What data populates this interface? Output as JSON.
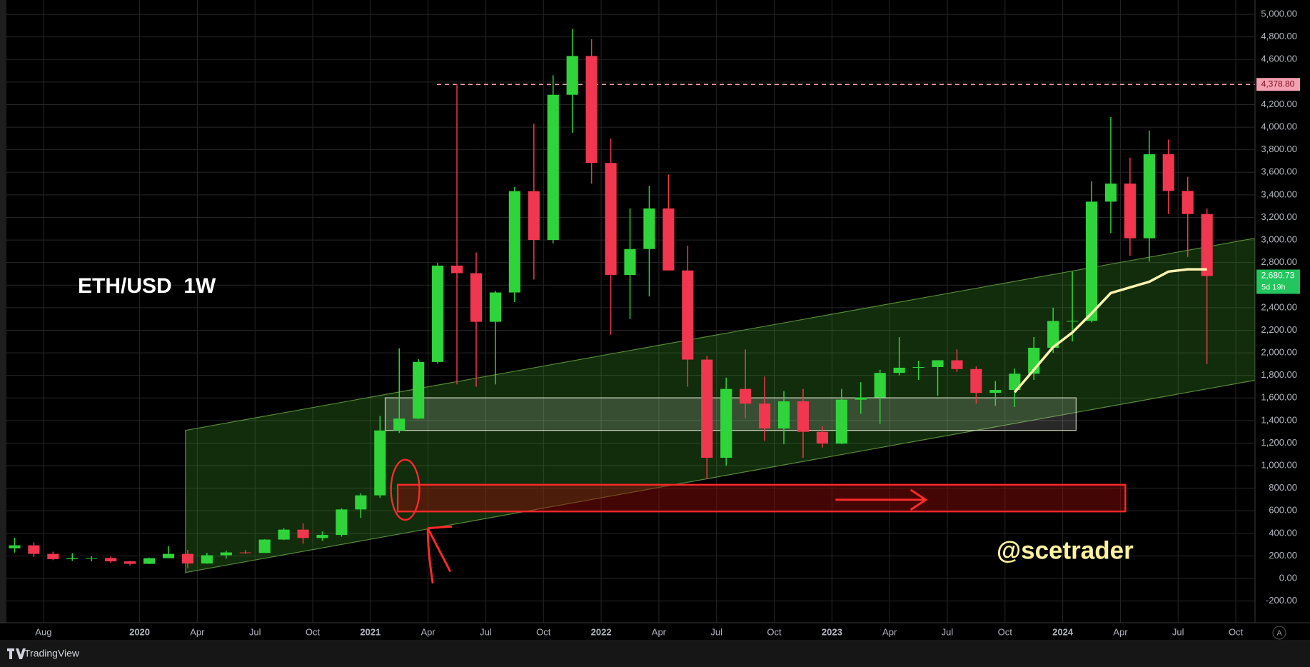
{
  "chart_data": {
    "type": "candlestick",
    "title": "ETH/USD  1W",
    "annotation": "@scetrader",
    "x": [
      "2019-06",
      "2019-07",
      "2019-08",
      "2019-09",
      "2019-10",
      "2019-11",
      "2019-12",
      "2020-01",
      "2020-02",
      "2020-03",
      "2020-04",
      "2020-05",
      "2020-06",
      "2020-07",
      "2020-08",
      "2020-09",
      "2020-10",
      "2020-11",
      "2020-12",
      "2021-01",
      "2021-02",
      "2021-03",
      "2021-04",
      "2021-05",
      "2021-06",
      "2021-07",
      "2021-08",
      "2021-09",
      "2021-10",
      "2021-11",
      "2021-12",
      "2022-01",
      "2022-02",
      "2022-03",
      "2022-04",
      "2022-05",
      "2022-06",
      "2022-07",
      "2022-08",
      "2022-09",
      "2022-10",
      "2022-11",
      "2022-12",
      "2023-01",
      "2023-02",
      "2023-03",
      "2023-04",
      "2023-05",
      "2023-06",
      "2023-07",
      "2023-08",
      "2023-09",
      "2023-10",
      "2023-11",
      "2023-12",
      "2024-01",
      "2024-02",
      "2024-03",
      "2024-04",
      "2024-05",
      "2024-06",
      "2024-07",
      "2024-08"
    ],
    "open": [
      268,
      294,
      218,
      172,
      180,
      182,
      152,
      130,
      180,
      218,
      133,
      206,
      231,
      226,
      345,
      433,
      359,
      386,
      612,
      737,
      1312,
      1417,
      1919,
      2773,
      2706,
      2275,
      2535,
      3433,
      3000,
      4287,
      4631,
      3683,
      2690,
      2920,
      3280,
      2730,
      1940,
      1070,
      1680,
      1550,
      1330,
      1570,
      1300,
      1195,
      1585,
      1605,
      1822,
      1868,
      1874,
      1934,
      1856,
      1645,
      1671,
      1815,
      2045,
      2282,
      2283,
      3340,
      3500,
      3015,
      3760,
      3435,
      3230
    ],
    "high": [
      361,
      320,
      237,
      223,
      197,
      195,
      155,
      185,
      288,
      254,
      228,
      246,
      253,
      347,
      445,
      489,
      417,
      622,
      755,
      1440,
      2040,
      1943,
      2797,
      4380,
      2890,
      2550,
      3470,
      4030,
      4460,
      4870,
      4780,
      3900,
      3280,
      3480,
      3580,
      2950,
      1970,
      1780,
      2030,
      1790,
      1660,
      1680,
      1350,
      1680,
      1740,
      1850,
      2140,
      1930,
      1930,
      2030,
      1880,
      1750,
      1860,
      2140,
      2400,
      2720,
      3520,
      4090,
      3730,
      3970,
      3890,
      3560,
      3280
    ],
    "low": [
      230,
      190,
      163,
      156,
      152,
      138,
      116,
      127,
      180,
      90,
      130,
      176,
      218,
      226,
      341,
      308,
      334,
      371,
      537,
      714,
      1290,
      1412,
      1904,
      1720,
      1700,
      1720,
      2450,
      2650,
      2970,
      3950,
      3500,
      2160,
      2300,
      2500,
      2780,
      1700,
      880,
      1000,
      1420,
      1220,
      1190,
      1070,
      1160,
      1190,
      1460,
      1370,
      1800,
      1760,
      1620,
      1830,
      1550,
      1530,
      1520,
      1760,
      2000,
      2100,
      2270,
      3060,
      2860,
      2810,
      3230,
      2850,
      1900
    ],
    "close": [
      294,
      218,
      172,
      180,
      182,
      152,
      130,
      180,
      218,
      133,
      206,
      231,
      226,
      345,
      433,
      359,
      386,
      612,
      737,
      1312,
      1417,
      1919,
      2773,
      2706,
      2275,
      2535,
      3433,
      3000,
      4287,
      4631,
      3683,
      2690,
      2920,
      3280,
      2730,
      1940,
      1070,
      1680,
      1550,
      1330,
      1570,
      1300,
      1195,
      1585,
      1605,
      1822,
      1868,
      1874,
      1934,
      1856,
      1645,
      1671,
      1815,
      2045,
      2282,
      2283,
      3340,
      3500,
      3015,
      3760,
      3435,
      3230,
      2680.73
    ],
    "line_values": [
      null,
      null,
      null,
      null,
      null,
      null,
      null,
      null,
      null,
      null,
      null,
      null,
      null,
      null,
      null,
      null,
      null,
      null,
      null,
      null,
      null,
      null,
      null,
      null,
      null,
      null,
      null,
      null,
      null,
      null,
      null,
      null,
      null,
      null,
      null,
      null,
      null,
      null,
      null,
      null,
      null,
      null,
      null,
      null,
      null,
      null,
      null,
      null,
      null,
      null,
      null,
      null,
      1650,
      1850,
      2050,
      2180,
      2350,
      2530,
      2580,
      2630,
      2720,
      2740,
      2740
    ],
    "line_color": "#fff3b0",
    "up_color": "#2fd43a",
    "down_color": "#f0374f",
    "xlim": [
      "2019-06",
      "2024-11"
    ],
    "xticks": [
      {
        "value": "2019-08",
        "label": "Aug"
      },
      {
        "value": "2020-01",
        "label": "2020"
      },
      {
        "value": "2020-04",
        "label": "Apr"
      },
      {
        "value": "2020-07",
        "label": "Jul"
      },
      {
        "value": "2020-10",
        "label": "Oct"
      },
      {
        "value": "2021-01",
        "label": "2021"
      },
      {
        "value": "2021-04",
        "label": "Apr"
      },
      {
        "value": "2021-07",
        "label": "Jul"
      },
      {
        "value": "2021-10",
        "label": "Oct"
      },
      {
        "value": "2022-01",
        "label": "2022"
      },
      {
        "value": "2022-04",
        "label": "Apr"
      },
      {
        "value": "2022-07",
        "label": "Jul"
      },
      {
        "value": "2022-10",
        "label": "Oct"
      },
      {
        "value": "2023-01",
        "label": "2023"
      },
      {
        "value": "2023-04",
        "label": "Apr"
      },
      {
        "value": "2023-07",
        "label": "Jul"
      },
      {
        "value": "2023-10",
        "label": "Oct"
      },
      {
        "value": "2024-01",
        "label": "2024"
      },
      {
        "value": "2024-04",
        "label": "Apr"
      },
      {
        "value": "2024-07",
        "label": "Jul"
      },
      {
        "value": "2024-10",
        "label": "Oct"
      }
    ],
    "ylim": [
      -392,
      5127
    ],
    "yticks": [
      {
        "value": -200,
        "label": "-200.00"
      },
      {
        "value": 0,
        "label": "0.00"
      },
      {
        "value": 200,
        "label": "200.00"
      },
      {
        "value": 400,
        "label": "400.00"
      },
      {
        "value": 600,
        "label": "600.00"
      },
      {
        "value": 800,
        "label": "800.00"
      },
      {
        "value": 1000,
        "label": "1,000.00"
      },
      {
        "value": 1200,
        "label": "1,200.00"
      },
      {
        "value": 1400,
        "label": "1,400.00"
      },
      {
        "value": 1600,
        "label": "1,600.00"
      },
      {
        "value": 1800,
        "label": "1,800.00"
      },
      {
        "value": 2000,
        "label": "2,000.00"
      },
      {
        "value": 2200,
        "label": "2,200.00"
      },
      {
        "value": 2400,
        "label": "2,400.00"
      },
      {
        "value": 2600,
        "label": "2,600.00"
      },
      {
        "value": 2800,
        "label": "2,800.00"
      },
      {
        "value": 3000,
        "label": "3,000.00"
      },
      {
        "value": 3200,
        "label": "3,200.00"
      },
      {
        "value": 3400,
        "label": "3,400.00"
      },
      {
        "value": 3600,
        "label": "3,600.00"
      },
      {
        "value": 3800,
        "label": "3,800.00"
      },
      {
        "value": 4000,
        "label": "4,000.00"
      },
      {
        "value": 4200,
        "label": "4,200.00"
      },
      {
        "value": 4400,
        "label": "4,400.00"
      },
      {
        "value": 4600,
        "label": "4,600.00"
      },
      {
        "value": 4800,
        "label": "4,800.00"
      },
      {
        "value": 5000,
        "label": "5,000.00"
      }
    ],
    "grid": true,
    "hline": {
      "value": 4378.8,
      "label": "4,378.80",
      "color": "#f4a0b0"
    },
    "last_price": {
      "value": 2680.73,
      "label": "2,680.73"
    },
    "countdown": "5d 19h"
  },
  "ui": {
    "logo": "TradingView",
    "auto_button": "A"
  }
}
